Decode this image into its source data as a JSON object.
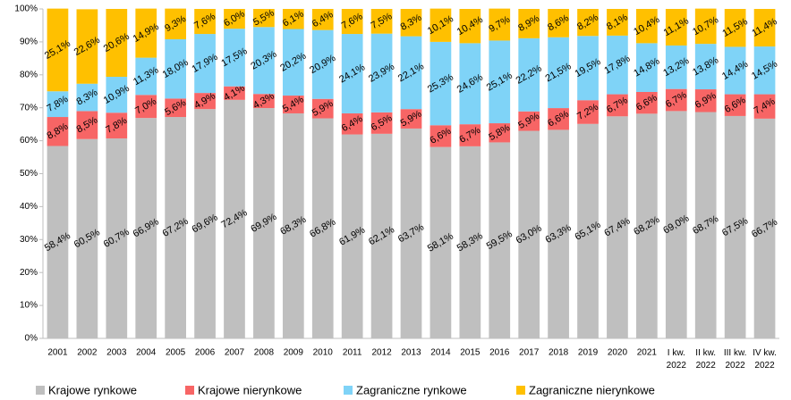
{
  "chart_data": {
    "type": "stacked_bar",
    "categories": [
      "2001",
      "2002",
      "2003",
      "2004",
      "2005",
      "2006",
      "2007",
      "2008",
      "2009",
      "2010",
      "2011",
      "2012",
      "2013",
      "2014",
      "2015",
      "2016",
      "2017",
      "2018",
      "2019",
      "2020",
      "2021",
      "I kw. 2022",
      "II kw. 2022",
      "III kw. 2022",
      "IV kw. 2022"
    ],
    "series": [
      {
        "name": "Krajowe rynkowe",
        "color": "#bfbfbf",
        "values": [
          58.4,
          60.5,
          60.7,
          66.9,
          67.2,
          69.6,
          72.4,
          69.9,
          68.3,
          66.8,
          61.9,
          62.1,
          63.7,
          58.1,
          58.3,
          59.5,
          63.0,
          63.3,
          65.1,
          67.4,
          68.2,
          69.0,
          68.7,
          67.5,
          66.7
        ],
        "value_labels": [
          "58,4%",
          "60,5%",
          "60,7%",
          "66,9%",
          "67,2%",
          "69,6%",
          "72,4%",
          "69,9%",
          "68,3%",
          "66,8%",
          "61,9%",
          "62,1%",
          "63,7%",
          "58,1%",
          "58,3%",
          "59,5%",
          "63,0%",
          "63,3%",
          "65,1%",
          "67,4%",
          "68,2%",
          "69,0%",
          "68,7%",
          "67,5%",
          "66,7%"
        ]
      },
      {
        "name": "Krajowe nierynkowe",
        "color": "#f76565",
        "values": [
          8.8,
          8.5,
          7.8,
          7.0,
          5.6,
          4.9,
          4.1,
          4.3,
          5.4,
          5.9,
          6.4,
          6.5,
          5.9,
          6.6,
          6.7,
          5.8,
          5.9,
          6.6,
          7.2,
          6.7,
          6.6,
          6.7,
          6.9,
          6.6,
          7.4
        ],
        "value_labels": [
          "8,8%",
          "8,5%",
          "7,8%",
          "7,0%",
          "5,6%",
          "4,9%",
          "4,1%",
          "4,3%",
          "5,4%",
          "5,9%",
          "6,4%",
          "6,5%",
          "5,9%",
          "6,6%",
          "6,7%",
          "5,8%",
          "5,9%",
          "6,6%",
          "7,2%",
          "6,7%",
          "6,6%",
          "6,7%",
          "6,9%",
          "6,6%",
          "7,4%"
        ]
      },
      {
        "name": "Zagraniczne rynkowe",
        "color": "#7fd3f7",
        "values": [
          7.8,
          8.3,
          10.9,
          11.3,
          18.0,
          17.9,
          17.5,
          20.3,
          20.2,
          20.9,
          24.1,
          23.9,
          22.1,
          25.3,
          24.6,
          25.1,
          22.2,
          21.5,
          19.5,
          17.8,
          14.8,
          13.2,
          13.8,
          14.4,
          14.5
        ],
        "value_labels": [
          "7,8%",
          "8,3%",
          "10,9%",
          "11,3%",
          "18,0%",
          "17,9%",
          "17,5%",
          "20,3%",
          "20,2%",
          "20,9%",
          "24,1%",
          "23,9%",
          "22,1%",
          "25,3%",
          "24,6%",
          "25,1%",
          "22,2%",
          "21,5%",
          "19,5%",
          "17,8%",
          "14,8%",
          "13,2%",
          "13,8%",
          "14,4%",
          "14,5%"
        ]
      },
      {
        "name": "Zagraniczne nierynkowe",
        "color": "#ffc000",
        "values": [
          25.1,
          22.6,
          20.6,
          14.9,
          9.3,
          7.6,
          6.0,
          5.5,
          6.1,
          6.4,
          7.6,
          7.5,
          8.3,
          10.1,
          10.4,
          9.7,
          8.9,
          8.6,
          8.2,
          8.1,
          10.4,
          11.1,
          10.7,
          11.5,
          11.4
        ],
        "value_labels": [
          "25,1%",
          "22,6%",
          "20,6%",
          "14,9%",
          "9,3%",
          "7,6%",
          "6,0%",
          "5,5%",
          "6,1%",
          "6,4%",
          "7,6%",
          "7,5%",
          "8,3%",
          "10,1%",
          "10,4%",
          "9,7%",
          "8,9%",
          "8,6%",
          "8,2%",
          "8,1%",
          "10,4%",
          "11,1%",
          "10,7%",
          "11,5%",
          "11,4%"
        ]
      }
    ],
    "ylim": [
      0,
      100
    ],
    "yticks": [
      {
        "value": 0,
        "label": "0%"
      },
      {
        "value": 10,
        "label": "10%"
      },
      {
        "value": 20,
        "label": "20%"
      },
      {
        "value": 30,
        "label": "30%"
      },
      {
        "value": 40,
        "label": "40%"
      },
      {
        "value": 50,
        "label": "50%"
      },
      {
        "value": 60,
        "label": "60%"
      },
      {
        "value": 70,
        "label": "70%"
      },
      {
        "value": 80,
        "label": "80%"
      },
      {
        "value": 90,
        "label": "90%"
      },
      {
        "value": 100,
        "label": "100%"
      }
    ],
    "legend": "bottom"
  }
}
